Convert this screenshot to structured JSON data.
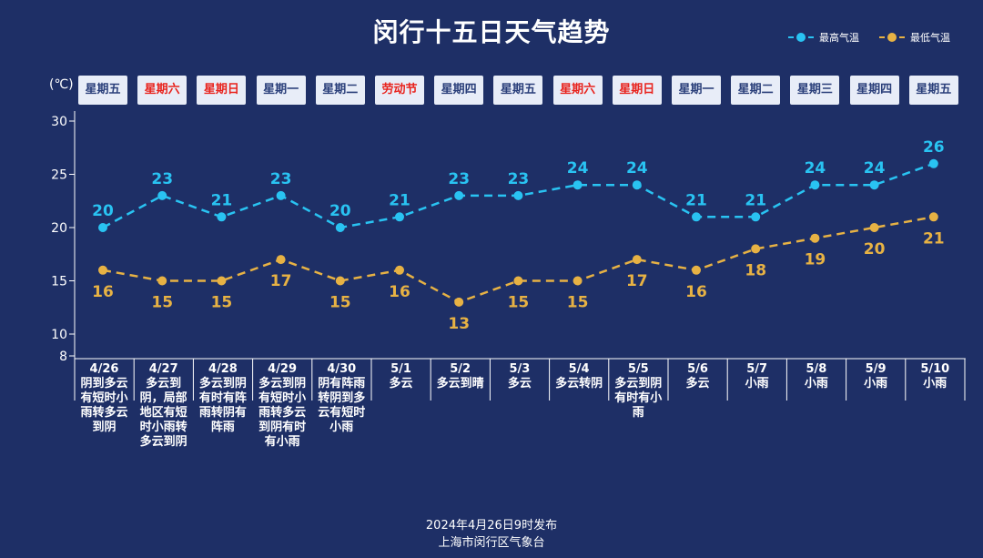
{
  "title": "闵行十五日天气趋势",
  "legend": [
    {
      "label": "最高气温",
      "color": "#29c3f2"
    },
    {
      "label": "最低气温",
      "color": "#e7b244"
    }
  ],
  "unit": "(℃)",
  "weekdays": [
    {
      "label": "星期五",
      "holiday": false
    },
    {
      "label": "星期六",
      "holiday": true
    },
    {
      "label": "星期日",
      "holiday": true
    },
    {
      "label": "星期一",
      "holiday": false
    },
    {
      "label": "星期二",
      "holiday": false
    },
    {
      "label": "劳动节",
      "holiday": true
    },
    {
      "label": "星期四",
      "holiday": false
    },
    {
      "label": "星期五",
      "holiday": false
    },
    {
      "label": "星期六",
      "holiday": true
    },
    {
      "label": "星期日",
      "holiday": true
    },
    {
      "label": "星期一",
      "holiday": false
    },
    {
      "label": "星期二",
      "holiday": false
    },
    {
      "label": "星期三",
      "holiday": false
    },
    {
      "label": "星期四",
      "holiday": false
    },
    {
      "label": "星期五",
      "holiday": false
    }
  ],
  "days": [
    {
      "date": "4/26",
      "desc": "阴到多云有短时小雨转多云到阴"
    },
    {
      "date": "4/27",
      "desc": "多云到阴，局部地区有短时小雨转多云到阴"
    },
    {
      "date": "4/28",
      "desc": "多云到阴有时有阵雨转阴有阵雨"
    },
    {
      "date": "4/29",
      "desc": "多云到阴有短时小雨转多云到阴有时有小雨"
    },
    {
      "date": "4/30",
      "desc": "阴有阵雨转阴到多云有短时小雨"
    },
    {
      "date": "5/1",
      "desc": "多云"
    },
    {
      "date": "5/2",
      "desc": "多云到晴"
    },
    {
      "date": "5/3",
      "desc": "多云"
    },
    {
      "date": "5/4",
      "desc": "多云转阴"
    },
    {
      "date": "5/5",
      "desc": "多云到阴有时有小雨"
    },
    {
      "date": "5/6",
      "desc": "多云"
    },
    {
      "date": "5/7",
      "desc": "小雨"
    },
    {
      "date": "5/8",
      "desc": "小雨"
    },
    {
      "date": "5/9",
      "desc": "小雨"
    },
    {
      "date": "5/10",
      "desc": "小雨"
    }
  ],
  "chart_data": {
    "type": "line",
    "x": [
      "4/26",
      "4/27",
      "4/28",
      "4/29",
      "4/30",
      "5/1",
      "5/2",
      "5/3",
      "5/4",
      "5/5",
      "5/6",
      "5/7",
      "5/8",
      "5/9",
      "5/10"
    ],
    "series": [
      {
        "name": "最高气温",
        "values": [
          20,
          23,
          21,
          23,
          20,
          21,
          23,
          23,
          24,
          24,
          21,
          21,
          24,
          24,
          26
        ],
        "color": "#29c3f2"
      },
      {
        "name": "最低气温",
        "values": [
          16,
          15,
          15,
          17,
          15,
          16,
          13,
          15,
          15,
          17,
          16,
          18,
          19,
          20,
          21
        ],
        "color": "#e7b244"
      }
    ],
    "ylabel": "(℃)",
    "yticks": [
      8,
      10,
      15,
      20,
      25,
      30
    ],
    "ylim": [
      8,
      30
    ],
    "grid": false,
    "legend_position": "top-right"
  },
  "footer": {
    "line1": "2024年4月26日9时发布",
    "line2": "上海市闵行区气象台"
  }
}
